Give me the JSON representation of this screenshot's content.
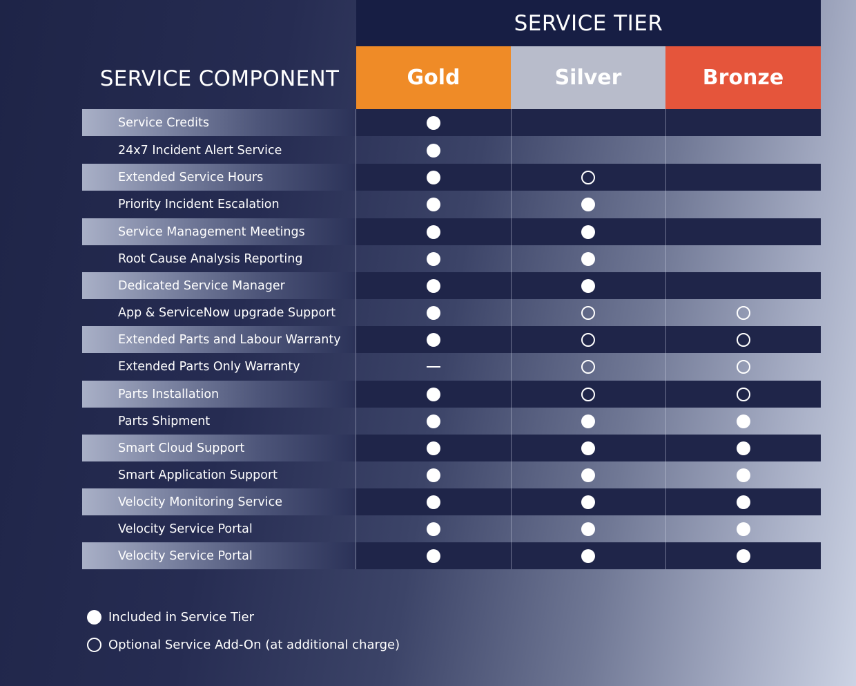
{
  "header": {
    "tier_title": "SERVICE TIER",
    "component_title": "SERVICE COMPONENT"
  },
  "tiers": [
    {
      "label": "Gold",
      "color": "#ef8b27"
    },
    {
      "label": "Silver",
      "color": "#b8bccb"
    },
    {
      "label": "Bronze",
      "color": "#e5553b"
    }
  ],
  "rows": [
    {
      "name": "Service Credits",
      "cells": [
        "included",
        "none",
        "none"
      ]
    },
    {
      "name": "24x7 Incident Alert Service",
      "cells": [
        "included",
        "none",
        "none"
      ]
    },
    {
      "name": "Extended Service Hours",
      "cells": [
        "included",
        "optional",
        "none"
      ]
    },
    {
      "name": "Priority Incident Escalation",
      "cells": [
        "included",
        "included",
        "none"
      ]
    },
    {
      "name": "Service Management Meetings",
      "cells": [
        "included",
        "included",
        "none"
      ]
    },
    {
      "name": "Root Cause Analysis Reporting",
      "cells": [
        "included",
        "included",
        "none"
      ]
    },
    {
      "name": "Dedicated Service Manager",
      "cells": [
        "included",
        "included",
        "none"
      ]
    },
    {
      "name": "App & ServiceNow upgrade Support",
      "cells": [
        "included",
        "optional",
        "optional"
      ]
    },
    {
      "name": "Extended Parts and Labour Warranty",
      "cells": [
        "included",
        "optional",
        "optional"
      ]
    },
    {
      "name": "Extended Parts Only Warranty",
      "cells": [
        "dash",
        "optional",
        "optional"
      ]
    },
    {
      "name": "Parts Installation",
      "cells": [
        "included",
        "optional",
        "optional"
      ]
    },
    {
      "name": "Parts Shipment",
      "cells": [
        "included",
        "included",
        "included"
      ]
    },
    {
      "name": "Smart Cloud Support",
      "cells": [
        "included",
        "included",
        "included"
      ]
    },
    {
      "name": "Smart Application Support",
      "cells": [
        "included",
        "included",
        "included"
      ]
    },
    {
      "name": "Velocity Monitoring Service",
      "cells": [
        "included",
        "included",
        "included"
      ]
    },
    {
      "name": "Velocity Service Portal",
      "cells": [
        "included",
        "included",
        "included"
      ]
    },
    {
      "name": "Velocity Service Portal",
      "cells": [
        "included",
        "included",
        "included"
      ]
    }
  ],
  "legend": {
    "included": "Included in Service Tier",
    "optional": "Optional Service Add-On (at additional charge)"
  }
}
